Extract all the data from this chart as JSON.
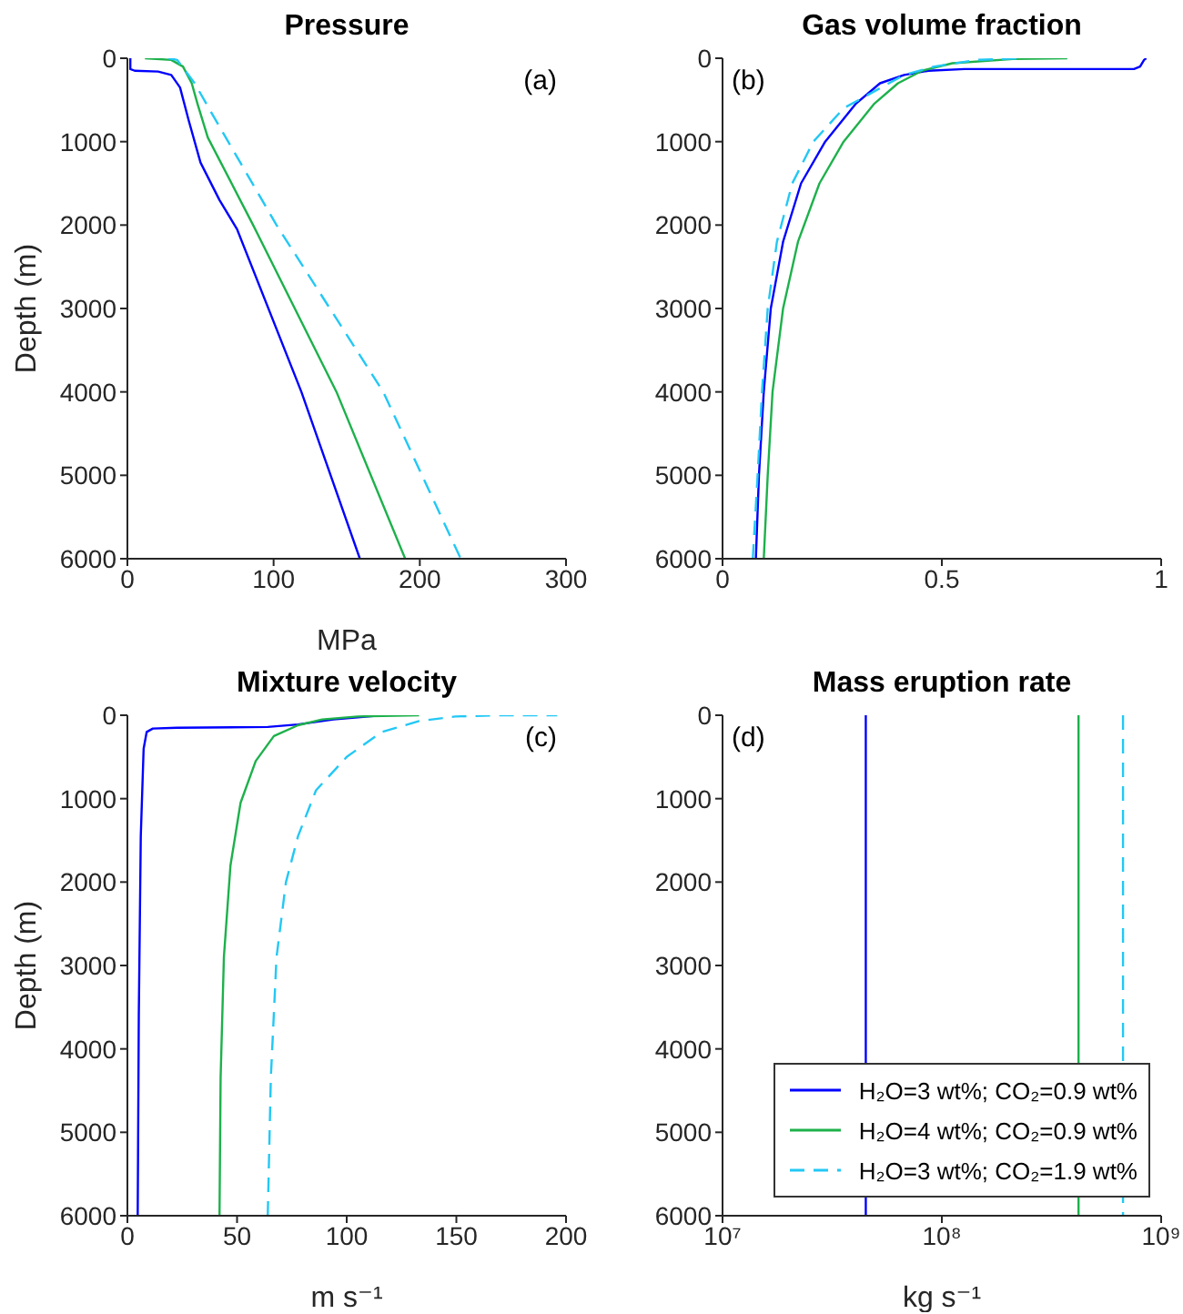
{
  "chart_data": [
    {
      "type": "line",
      "title": "Pressure",
      "xlabel": "MPa",
      "ylabel": "Depth (m)",
      "annotations": [
        "(a)"
      ],
      "xlim": [
        0,
        300
      ],
      "xticks": [
        0,
        100,
        200,
        300
      ],
      "ylim": [
        6000,
        0
      ],
      "yticks": [
        0,
        1000,
        2000,
        3000,
        4000,
        5000,
        6000
      ],
      "series": [
        {
          "color": "#0000ff",
          "x": [
            2,
            2,
            5,
            21,
            30,
            36,
            42,
            50,
            63,
            75,
            119,
            159
          ],
          "values": [
            0,
            130,
            150,
            160,
            200,
            350,
            750,
            1250,
            1700,
            2050,
            4000,
            6000
          ]
        },
        {
          "color": "#1db14b",
          "x": [
            12,
            30,
            38,
            44,
            48,
            55,
            86,
            143,
            190
          ],
          "values": [
            0,
            20,
            100,
            300,
            550,
            950,
            2000,
            4000,
            6000
          ]
        },
        {
          "color": "#22c8f5",
          "line_style": "dashed",
          "x": [
            28,
            34,
            46,
            59,
            102,
            175,
            228
          ],
          "values": [
            0,
            20,
            300,
            700,
            2000,
            4000,
            6000
          ]
        }
      ]
    },
    {
      "type": "line",
      "title": "Gas volume fraction",
      "annotations": [
        "(b)"
      ],
      "xlim": [
        0,
        1
      ],
      "xticks": [
        0,
        0.5,
        1
      ],
      "ylim": [
        6000,
        0
      ],
      "yticks": [
        0,
        1000,
        2000,
        3000,
        4000,
        5000,
        6000
      ],
      "series": [
        {
          "color": "#0000ff",
          "x": [
            0.076,
            0.083,
            0.094,
            0.11,
            0.138,
            0.179,
            0.234,
            0.303,
            0.359,
            0.414,
            0.469,
            0.552,
            0.938,
            0.952,
            0.961,
            0.966
          ],
          "values": [
            6000,
            5000,
            4000,
            3000,
            2200,
            1500,
            1000,
            550,
            300,
            200,
            150,
            130,
            130,
            100,
            20,
            0
          ]
        },
        {
          "color": "#1db14b",
          "x": [
            0.094,
            0.103,
            0.114,
            0.138,
            0.172,
            0.221,
            0.276,
            0.345,
            0.4,
            0.455,
            0.524,
            0.662,
            0.786
          ],
          "values": [
            6000,
            5000,
            4000,
            3000,
            2200,
            1500,
            1000,
            550,
            300,
            150,
            60,
            10,
            0
          ]
        },
        {
          "color": "#22c8f5",
          "line_style": "dashed",
          "x": [
            0.069,
            0.08,
            0.09,
            0.103,
            0.124,
            0.159,
            0.207,
            0.276,
            0.345,
            0.414,
            0.483,
            0.579,
            0.69
          ],
          "values": [
            6000,
            5000,
            4000,
            3000,
            2200,
            1500,
            1000,
            600,
            400,
            200,
            100,
            20,
            0
          ]
        }
      ]
    },
    {
      "type": "line",
      "title": "Mixture velocity",
      "xlabel": "m s⁻¹",
      "ylabel": "Depth (m)",
      "annotations": [
        "(c)"
      ],
      "xlim": [
        0,
        200
      ],
      "xticks": [
        0,
        50,
        100,
        150,
        200
      ],
      "ylim": [
        6000,
        0
      ],
      "yticks": [
        0,
        1000,
        2000,
        3000,
        4000,
        5000,
        6000
      ],
      "series": [
        {
          "color": "#0000ff",
          "x": [
            4.7,
            5.2,
            6.1,
            7.4,
            8.8,
            11.6,
            22.6,
            64,
            77.8,
            94,
            116
          ],
          "values": [
            6000,
            3600,
            1450,
            400,
            200,
            160,
            150,
            140,
            110,
            50,
            0
          ]
        },
        {
          "color": "#1db14b",
          "x": [
            42,
            42.5,
            44,
            47,
            51.6,
            58.5,
            66.8,
            77.8,
            88.8,
            105,
            133
          ],
          "values": [
            6000,
            4350,
            2900,
            1800,
            1050,
            550,
            250,
            120,
            50,
            15,
            0
          ]
        },
        {
          "color": "#22c8f5",
          "line_style": "dashed",
          "x": [
            64,
            65.4,
            68,
            72.3,
            77.8,
            86,
            100,
            116,
            133,
            149.5,
            171.6,
            196
          ],
          "values": [
            6000,
            4350,
            2900,
            2000,
            1450,
            900,
            500,
            200,
            70,
            15,
            0,
            0
          ]
        }
      ]
    },
    {
      "type": "line",
      "title": "Mass eruption rate",
      "xlabel": "kg s⁻¹",
      "annotations": [
        "(d)"
      ],
      "log": "x",
      "legend": "bottom right",
      "xlim": [
        10000000,
        1000000000
      ],
      "xticks": [
        {
          "value": 10000000,
          "label": "10⁷"
        },
        {
          "value": 100000000,
          "label": "10⁸"
        },
        {
          "value": 1000000000,
          "label": "10⁹"
        }
      ],
      "ylim": [
        6000,
        0
      ],
      "yticks": [
        0,
        1000,
        2000,
        3000,
        4000,
        5000,
        6000
      ],
      "series": [
        {
          "name": "H₂O=3 wt%; CO₂=0.9 wt%",
          "color": "#0000ff",
          "x": [
            45000000,
            45000000
          ],
          "values": [
            0,
            6000
          ]
        },
        {
          "name": "H₂O=4 wt%; CO₂=0.9 wt%",
          "color": "#1db14b",
          "x": [
            420000000,
            420000000
          ],
          "values": [
            0,
            6000
          ]
        },
        {
          "name": "H₂O=3 wt%; CO₂=1.9 wt%",
          "color": "#22c8f5",
          "line_style": "dashed",
          "x": [
            670000000,
            670000000
          ],
          "values": [
            0,
            6000
          ]
        }
      ]
    }
  ]
}
